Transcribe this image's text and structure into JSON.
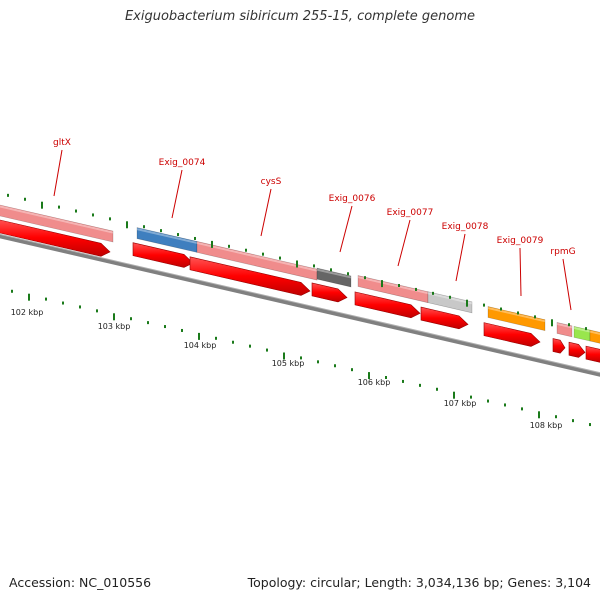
{
  "title": "Exiguobacterium sibiricum 255-15, complete genome",
  "footer": {
    "accession": "Accession: NC_010556",
    "summary": "Topology: circular; Length: 3,034,136 bp; Genes: 3,104"
  },
  "scale": {
    "ticks": [
      "102 kbp",
      "103 kbp",
      "104 kbp",
      "105 kbp",
      "106 kbp",
      "107 kbp",
      "108 kbp"
    ]
  },
  "genes": [
    {
      "name": "gltX",
      "color": "#f08c8c"
    },
    {
      "name": "Exig_0074",
      "color": "#3f7fbf"
    },
    {
      "name": "cysS",
      "color": "#f08c8c"
    },
    {
      "name": "Exig_0076",
      "color": "#666666"
    },
    {
      "name": "Exig_0077",
      "color": "#f08c8c"
    },
    {
      "name": "Exig_0078",
      "color": "#c8c8c8"
    },
    {
      "name": "Exig_0079",
      "color": "#ff9900"
    },
    {
      "name": "rpmG",
      "color": "#f08c8c"
    }
  ],
  "colors": {
    "label": "#cc0000",
    "arrow": "#ff0000",
    "tick": "#1a7a1a",
    "backbone": "#808080"
  }
}
